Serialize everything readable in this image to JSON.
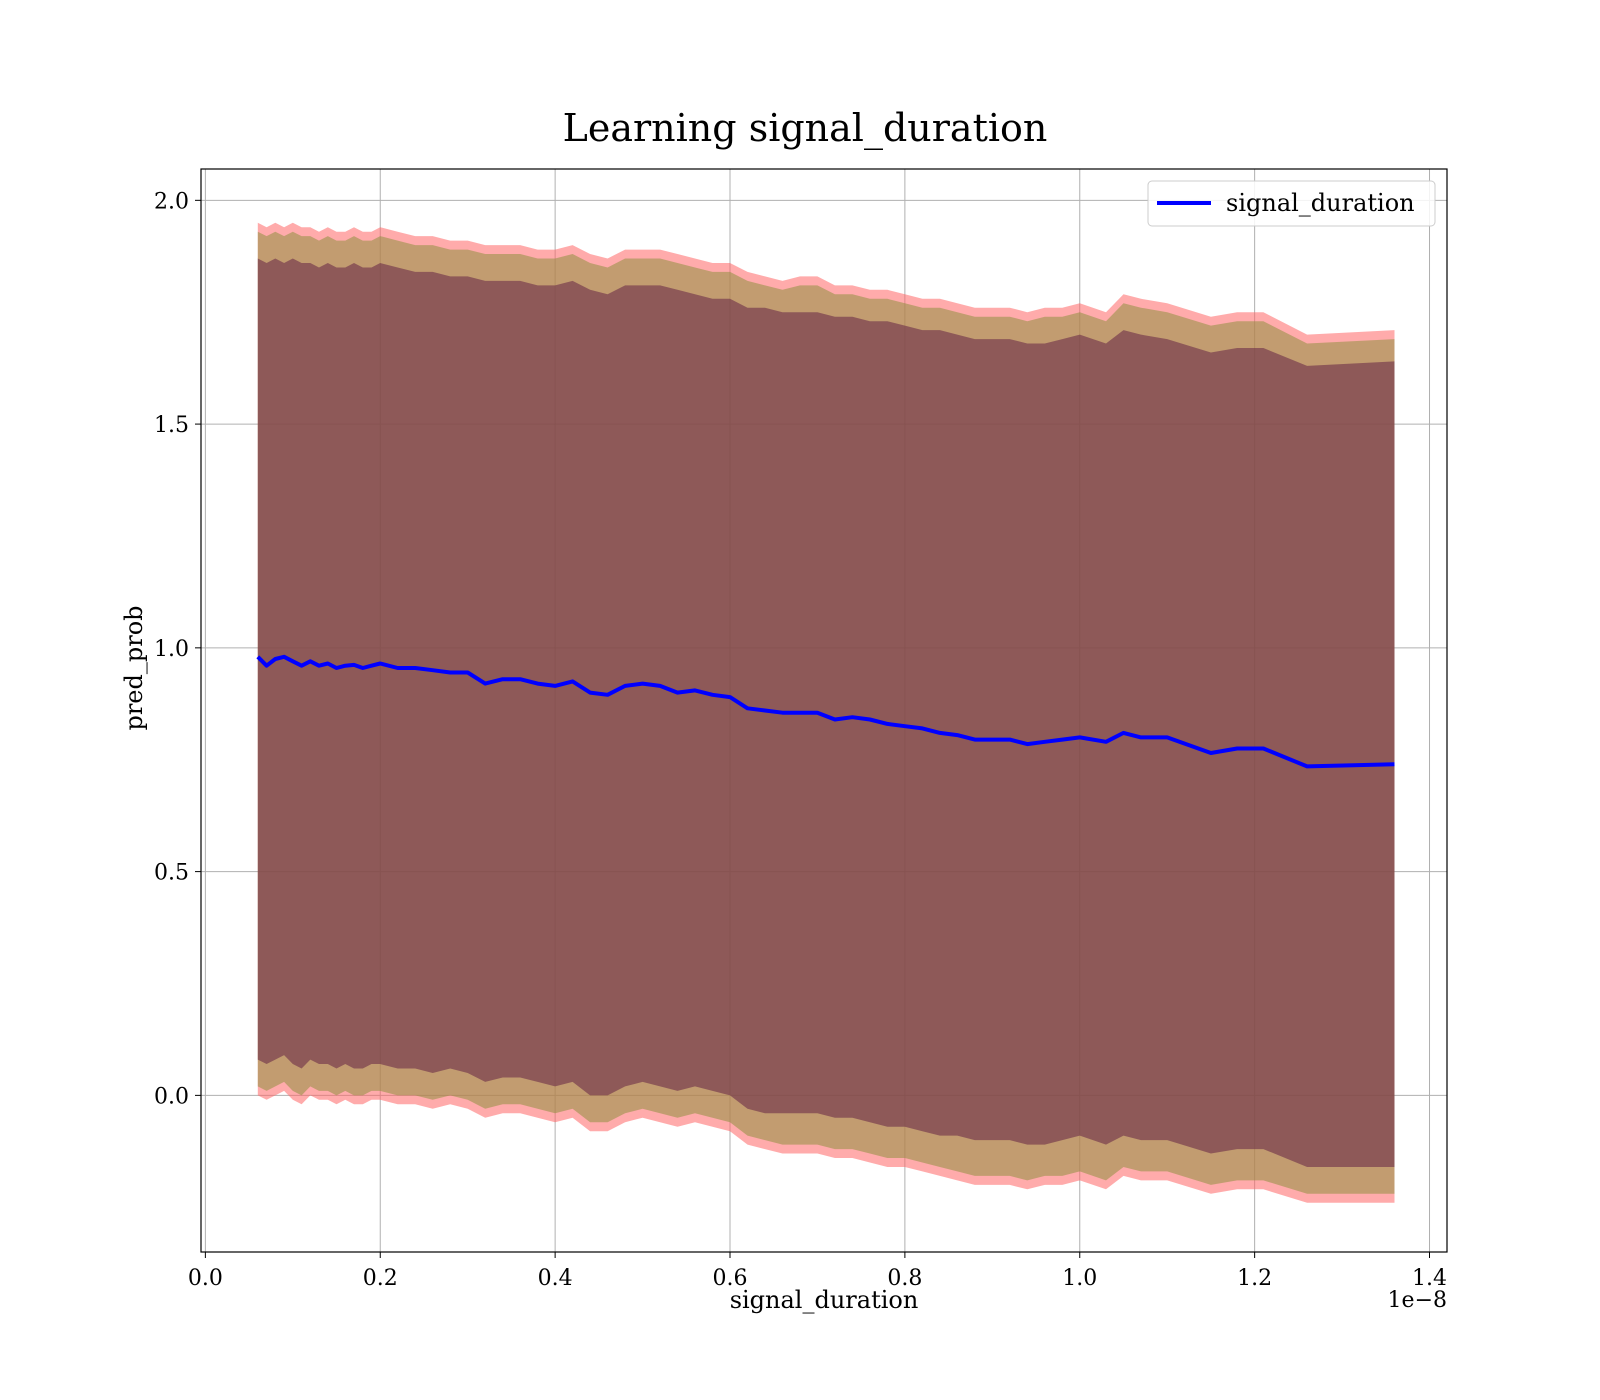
{
  "chart_data": {
    "type": "line",
    "title": "Learning signal_duration",
    "xlabel": "signal_duration",
    "ylabel": "pred_prob",
    "x_offset_label": "1e−8",
    "xlim": [
      -0.005,
      1.42
    ],
    "ylim": [
      -0.35,
      2.07
    ],
    "x_ticks": [
      0.0,
      0.2,
      0.4,
      0.6,
      0.8,
      1.0,
      1.2,
      1.4
    ],
    "x_tick_labels": [
      "0.0",
      "0.2",
      "0.4",
      "0.6",
      "0.8",
      "1.0",
      "1.2",
      "1.4"
    ],
    "y_ticks": [
      0.0,
      0.5,
      1.0,
      1.5,
      2.0
    ],
    "y_tick_labels": [
      "0.0",
      "0.5",
      "1.0",
      "1.5",
      "2.0"
    ],
    "grid": true,
    "legend_position": "top-right",
    "colors": {
      "line": "#0000ff",
      "band_outer": "#ff6666",
      "band_middle": "#8f8f3f",
      "band_inner": "#6a2d48"
    },
    "series": [
      {
        "name": "signal_duration",
        "x": [
          0.06,
          0.07,
          0.08,
          0.09,
          0.1,
          0.11,
          0.12,
          0.13,
          0.14,
          0.15,
          0.16,
          0.17,
          0.18,
          0.19,
          0.2,
          0.22,
          0.24,
          0.26,
          0.28,
          0.3,
          0.32,
          0.34,
          0.36,
          0.38,
          0.4,
          0.42,
          0.44,
          0.46,
          0.48,
          0.5,
          0.52,
          0.54,
          0.56,
          0.58,
          0.6,
          0.62,
          0.64,
          0.66,
          0.68,
          0.7,
          0.72,
          0.74,
          0.76,
          0.78,
          0.8,
          0.82,
          0.84,
          0.86,
          0.88,
          0.9,
          0.92,
          0.94,
          0.96,
          0.98,
          1.0,
          1.03,
          1.05,
          1.07,
          1.1,
          1.15,
          1.18,
          1.21,
          1.26,
          1.36
        ],
        "values": [
          0.98,
          0.96,
          0.975,
          0.98,
          0.97,
          0.96,
          0.97,
          0.96,
          0.965,
          0.955,
          0.96,
          0.962,
          0.955,
          0.96,
          0.965,
          0.955,
          0.955,
          0.95,
          0.945,
          0.945,
          0.92,
          0.93,
          0.93,
          0.92,
          0.915,
          0.925,
          0.9,
          0.895,
          0.915,
          0.92,
          0.915,
          0.9,
          0.905,
          0.895,
          0.89,
          0.865,
          0.86,
          0.855,
          0.855,
          0.855,
          0.84,
          0.845,
          0.84,
          0.83,
          0.825,
          0.82,
          0.81,
          0.805,
          0.795,
          0.795,
          0.795,
          0.785,
          0.79,
          0.795,
          0.8,
          0.79,
          0.81,
          0.8,
          0.8,
          0.765,
          0.775,
          0.775,
          0.735,
          0.74
        ]
      }
    ],
    "band_inner": {
      "upper": [
        1.87,
        1.86,
        1.87,
        1.86,
        1.87,
        1.86,
        1.86,
        1.85,
        1.86,
        1.85,
        1.85,
        1.86,
        1.85,
        1.85,
        1.86,
        1.85,
        1.84,
        1.84,
        1.83,
        1.83,
        1.82,
        1.82,
        1.82,
        1.81,
        1.81,
        1.82,
        1.8,
        1.79,
        1.81,
        1.81,
        1.81,
        1.8,
        1.79,
        1.78,
        1.78,
        1.76,
        1.76,
        1.75,
        1.75,
        1.75,
        1.74,
        1.74,
        1.73,
        1.73,
        1.72,
        1.71,
        1.71,
        1.7,
        1.69,
        1.69,
        1.69,
        1.68,
        1.68,
        1.69,
        1.7,
        1.68,
        1.71,
        1.7,
        1.69,
        1.66,
        1.67,
        1.67,
        1.63,
        1.64
      ],
      "lower": [
        0.08,
        0.07,
        0.08,
        0.09,
        0.07,
        0.06,
        0.08,
        0.07,
        0.07,
        0.06,
        0.07,
        0.06,
        0.06,
        0.07,
        0.07,
        0.06,
        0.06,
        0.05,
        0.06,
        0.05,
        0.03,
        0.04,
        0.04,
        0.03,
        0.02,
        0.03,
        0.0,
        0.0,
        0.02,
        0.03,
        0.02,
        0.01,
        0.02,
        0.01,
        0.0,
        -0.03,
        -0.04,
        -0.04,
        -0.04,
        -0.04,
        -0.05,
        -0.05,
        -0.06,
        -0.07,
        -0.07,
        -0.08,
        -0.09,
        -0.09,
        -0.1,
        -0.1,
        -0.1,
        -0.11,
        -0.11,
        -0.1,
        -0.09,
        -0.11,
        -0.09,
        -0.1,
        -0.1,
        -0.13,
        -0.12,
        -0.12,
        -0.16,
        -0.16
      ]
    },
    "band_middle": {
      "upper": [
        1.93,
        1.92,
        1.93,
        1.92,
        1.93,
        1.92,
        1.92,
        1.91,
        1.92,
        1.91,
        1.91,
        1.92,
        1.91,
        1.91,
        1.92,
        1.91,
        1.9,
        1.9,
        1.89,
        1.89,
        1.88,
        1.88,
        1.88,
        1.87,
        1.87,
        1.88,
        1.86,
        1.85,
        1.87,
        1.87,
        1.87,
        1.86,
        1.85,
        1.84,
        1.84,
        1.82,
        1.81,
        1.8,
        1.81,
        1.81,
        1.79,
        1.79,
        1.78,
        1.78,
        1.77,
        1.76,
        1.76,
        1.75,
        1.74,
        1.74,
        1.74,
        1.73,
        1.74,
        1.74,
        1.75,
        1.73,
        1.77,
        1.76,
        1.75,
        1.72,
        1.73,
        1.73,
        1.68,
        1.69
      ],
      "lower": [
        0.02,
        0.01,
        0.02,
        0.03,
        0.01,
        0.0,
        0.02,
        0.01,
        0.01,
        0.0,
        0.01,
        0.0,
        0.0,
        0.01,
        0.01,
        0.0,
        0.0,
        -0.01,
        0.0,
        -0.01,
        -0.03,
        -0.02,
        -0.02,
        -0.03,
        -0.04,
        -0.03,
        -0.06,
        -0.06,
        -0.04,
        -0.03,
        -0.04,
        -0.05,
        -0.04,
        -0.05,
        -0.06,
        -0.09,
        -0.1,
        -0.11,
        -0.11,
        -0.11,
        -0.12,
        -0.12,
        -0.13,
        -0.14,
        -0.14,
        -0.15,
        -0.16,
        -0.17,
        -0.18,
        -0.18,
        -0.18,
        -0.19,
        -0.18,
        -0.18,
        -0.17,
        -0.19,
        -0.16,
        -0.17,
        -0.17,
        -0.2,
        -0.19,
        -0.19,
        -0.22,
        -0.22
      ]
    },
    "band_outer": {
      "upper": [
        1.95,
        1.94,
        1.95,
        1.94,
        1.95,
        1.94,
        1.94,
        1.93,
        1.94,
        1.93,
        1.93,
        1.94,
        1.93,
        1.93,
        1.94,
        1.93,
        1.92,
        1.92,
        1.91,
        1.91,
        1.9,
        1.9,
        1.9,
        1.89,
        1.89,
        1.9,
        1.88,
        1.87,
        1.89,
        1.89,
        1.89,
        1.88,
        1.87,
        1.86,
        1.86,
        1.84,
        1.83,
        1.82,
        1.83,
        1.83,
        1.81,
        1.81,
        1.8,
        1.8,
        1.79,
        1.78,
        1.78,
        1.77,
        1.76,
        1.76,
        1.76,
        1.75,
        1.76,
        1.76,
        1.77,
        1.75,
        1.79,
        1.78,
        1.77,
        1.74,
        1.75,
        1.75,
        1.7,
        1.71
      ],
      "lower": [
        0.0,
        -0.01,
        0.0,
        0.01,
        -0.01,
        -0.02,
        0.0,
        -0.01,
        -0.01,
        -0.02,
        -0.01,
        -0.02,
        -0.02,
        -0.01,
        -0.01,
        -0.02,
        -0.02,
        -0.03,
        -0.02,
        -0.03,
        -0.05,
        -0.04,
        -0.04,
        -0.05,
        -0.06,
        -0.05,
        -0.08,
        -0.08,
        -0.06,
        -0.05,
        -0.06,
        -0.07,
        -0.06,
        -0.07,
        -0.08,
        -0.11,
        -0.12,
        -0.13,
        -0.13,
        -0.13,
        -0.14,
        -0.14,
        -0.15,
        -0.16,
        -0.16,
        -0.17,
        -0.18,
        -0.19,
        -0.2,
        -0.2,
        -0.2,
        -0.21,
        -0.2,
        -0.2,
        -0.19,
        -0.21,
        -0.18,
        -0.19,
        -0.19,
        -0.22,
        -0.21,
        -0.21,
        -0.24,
        -0.24
      ]
    }
  }
}
